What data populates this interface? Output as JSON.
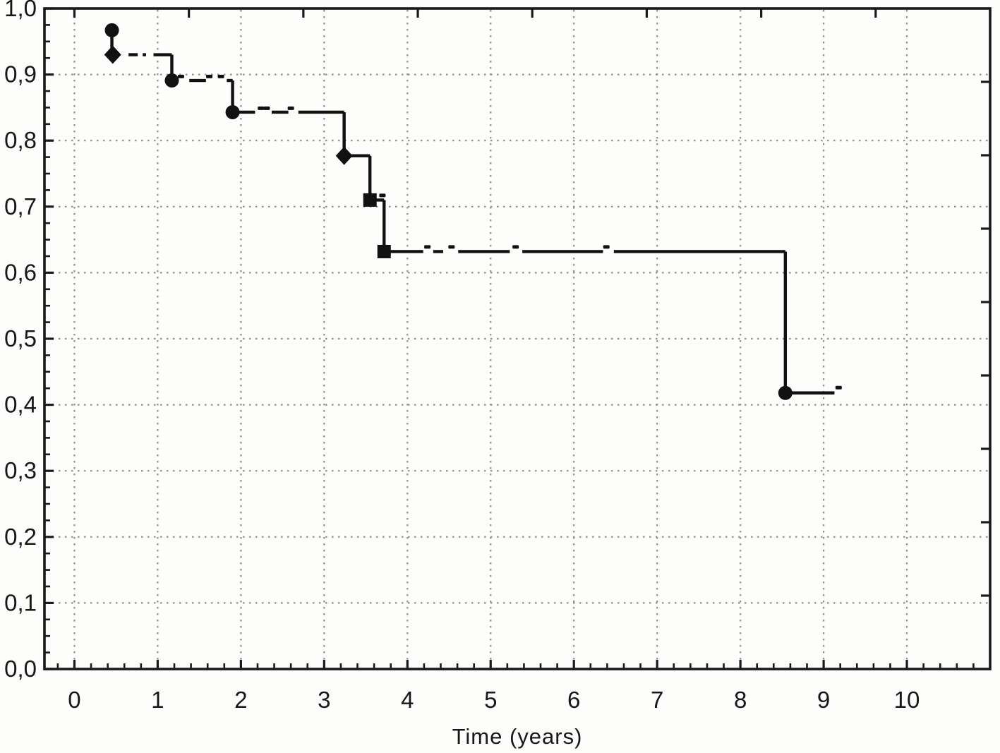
{
  "figure": {
    "kind": "scanned statistical plot",
    "background": "#fdfdfc",
    "frame_color": "#1a1a1a",
    "grid_color": "#8f8f8f",
    "curve_color": "#111111",
    "text_color": "#171717"
  },
  "chart_data": {
    "type": "line",
    "subtype": "kaplan-meier-step-curve",
    "title": "",
    "xlabel": "Time (years)",
    "ylabel": "",
    "xlim": [
      -0.36,
      11.0
    ],
    "ylim": [
      0.0,
      1.0
    ],
    "grid": "dotted",
    "legend": "none",
    "x_tick_values": [
      0,
      1,
      2,
      3,
      4,
      5,
      6,
      7,
      8,
      9,
      10
    ],
    "x_tick_labels": [
      "0",
      "1",
      "2",
      "3",
      "4",
      "5",
      "6",
      "7",
      "8",
      "9",
      "10"
    ],
    "x_minor_tick_step": 0.2,
    "y_tick_values": [
      1.0,
      0.9,
      0.8,
      0.7,
      0.6,
      0.5,
      0.4,
      0.3,
      0.2,
      0.1,
      0.0
    ],
    "y_tick_labels": [
      "1,0",
      "0,9",
      "0,8",
      "0,7",
      "0,6",
      "0,5",
      "0,4",
      "0,3",
      "0,2",
      "0,1",
      "0,0"
    ],
    "y_minor_tick_step": 0.025,
    "top_axis_tick_t": [
      0,
      1.375,
      2.75,
      4.125,
      5.5,
      6.875,
      8.25,
      9.625,
      11.0
    ],
    "right_axis_divisions": 9,
    "event_points": [
      {
        "t": 0.45,
        "s": 0.967,
        "marker": "circle"
      },
      {
        "t": 0.46,
        "s": 0.93,
        "marker": "diamond"
      },
      {
        "t": 1.17,
        "s": 0.891,
        "marker": "circle"
      },
      {
        "t": 1.9,
        "s": 0.843,
        "marker": "circle"
      },
      {
        "t": 3.24,
        "s": 0.777,
        "marker": "diamond"
      },
      {
        "t": 3.55,
        "s": 0.71,
        "marker": "square"
      },
      {
        "t": 3.72,
        "s": 0.632,
        "marker": "square"
      },
      {
        "t": 8.54,
        "s": 0.418,
        "marker": "circle"
      }
    ],
    "censor_marks": [
      {
        "t": 1.28,
        "s": 0.897
      },
      {
        "t": 1.62,
        "s": 0.897
      },
      {
        "t": 1.76,
        "s": 0.897
      },
      {
        "t": 2.24,
        "s": 0.849
      },
      {
        "t": 2.31,
        "s": 0.849
      },
      {
        "t": 2.6,
        "s": 0.849
      },
      {
        "t": 3.7,
        "s": 0.717
      },
      {
        "t": 4.24,
        "s": 0.639
      },
      {
        "t": 4.53,
        "s": 0.639
      },
      {
        "t": 5.3,
        "s": 0.639
      },
      {
        "t": 6.39,
        "s": 0.639
      },
      {
        "t": 9.18,
        "s": 0.426
      }
    ],
    "segments": [
      {
        "x1": 0.45,
        "y1": 0.967,
        "x2": 0.45,
        "y2": 0.93
      },
      {
        "x1": 0.65,
        "y1": 0.93,
        "x2": 0.76,
        "y2": 0.93
      },
      {
        "x1": 0.82,
        "y1": 0.93,
        "x2": 0.86,
        "y2": 0.93
      },
      {
        "x1": 0.95,
        "y1": 0.93,
        "x2": 1.17,
        "y2": 0.93
      },
      {
        "x1": 1.17,
        "y1": 0.93,
        "x2": 1.17,
        "y2": 0.891
      },
      {
        "x1": 1.38,
        "y1": 0.891,
        "x2": 1.58,
        "y2": 0.891
      },
      {
        "x1": 1.83,
        "y1": 0.891,
        "x2": 1.9,
        "y2": 0.891
      },
      {
        "x1": 1.9,
        "y1": 0.891,
        "x2": 1.9,
        "y2": 0.843
      },
      {
        "x1": 1.9,
        "y1": 0.843,
        "x2": 2.17,
        "y2": 0.843
      },
      {
        "x1": 2.37,
        "y1": 0.843,
        "x2": 2.57,
        "y2": 0.843
      },
      {
        "x1": 2.69,
        "y1": 0.843,
        "x2": 3.24,
        "y2": 0.843
      },
      {
        "x1": 3.24,
        "y1": 0.843,
        "x2": 3.24,
        "y2": 0.777
      },
      {
        "x1": 3.24,
        "y1": 0.777,
        "x2": 3.55,
        "y2": 0.777
      },
      {
        "x1": 3.55,
        "y1": 0.777,
        "x2": 3.55,
        "y2": 0.71
      },
      {
        "x1": 3.55,
        "y1": 0.71,
        "x2": 3.72,
        "y2": 0.71
      },
      {
        "x1": 3.72,
        "y1": 0.71,
        "x2": 3.72,
        "y2": 0.632
      },
      {
        "x1": 3.72,
        "y1": 0.632,
        "x2": 4.19,
        "y2": 0.632
      },
      {
        "x1": 4.31,
        "y1": 0.632,
        "x2": 4.43,
        "y2": 0.632
      },
      {
        "x1": 4.61,
        "y1": 0.632,
        "x2": 5.23,
        "y2": 0.632
      },
      {
        "x1": 5.38,
        "y1": 0.632,
        "x2": 6.35,
        "y2": 0.632
      },
      {
        "x1": 6.48,
        "y1": 0.632,
        "x2": 8.54,
        "y2": 0.632
      },
      {
        "x1": 8.54,
        "y1": 0.632,
        "x2": 8.54,
        "y2": 0.418
      },
      {
        "x1": 8.54,
        "y1": 0.418,
        "x2": 9.13,
        "y2": 0.418
      }
    ]
  }
}
